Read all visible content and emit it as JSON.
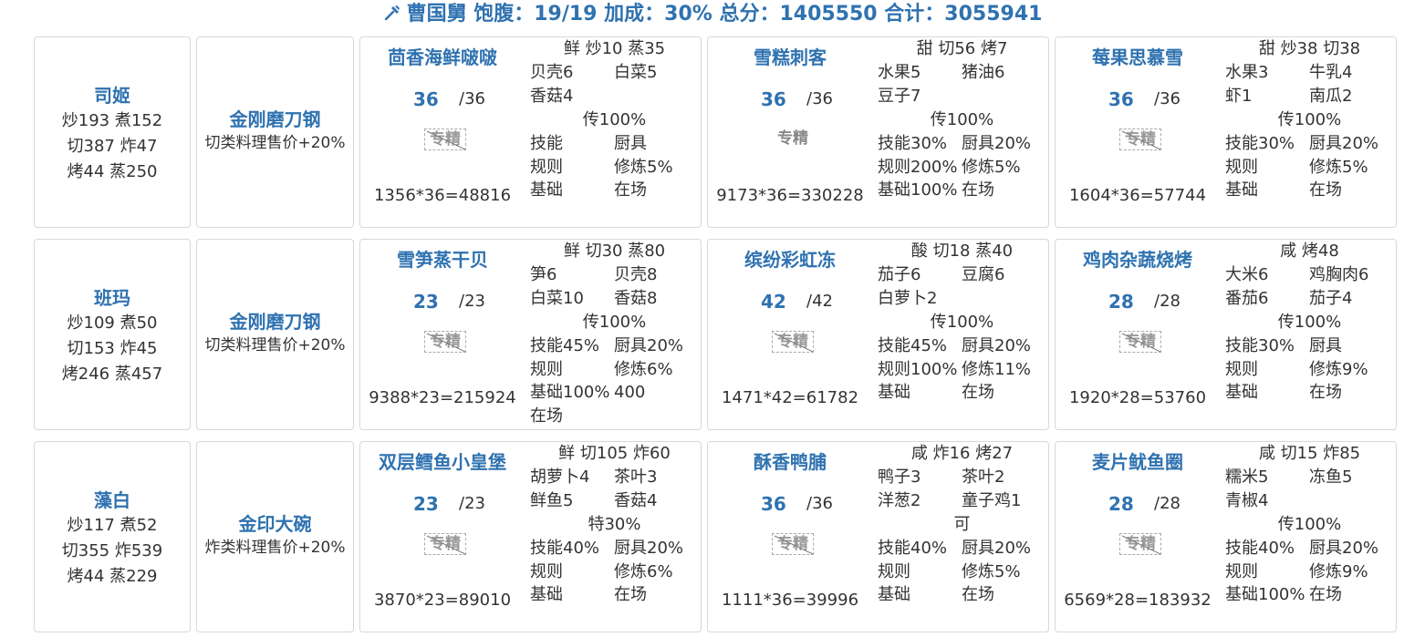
{
  "header": {
    "pin_icon": "pin-icon",
    "text": "曹国舅 饱腹：19/19 加成：30% 总分：1405550 合计：3055941"
  },
  "rows": [
    {
      "chef": {
        "name": "司姬",
        "stats": [
          "炒193 煮152",
          "切387 炸47",
          "烤44 蒸250"
        ]
      },
      "equip": {
        "name": "金刚磨刀钢",
        "desc": "切类料理售价+20%"
      },
      "recipes": [
        {
          "name": "茴香海鲜啵啵",
          "qty": "36",
          "max": "/36",
          "badge": "专精",
          "badge_style": "dashed",
          "formula": "1356*36=48816",
          "lines": [
            [
              "鲜 炒10 蒸35",
              null,
              "center"
            ],
            [
              "贝壳6",
              "白菜5"
            ],
            [
              "香菇4",
              ""
            ],
            [
              "传100%",
              null,
              "center"
            ],
            [
              "技能",
              "厨具"
            ],
            [
              "规则",
              "修炼5%"
            ],
            [
              "基础",
              "在场"
            ]
          ]
        },
        {
          "name": "雪糕刺客",
          "qty": "36",
          "max": "/36",
          "badge": "专精",
          "badge_style": "plain",
          "formula": "9173*36=330228",
          "lines": [
            [
              "甜 切56 烤7",
              null,
              "center"
            ],
            [
              "水果5",
              "猪油6"
            ],
            [
              "豆子7",
              ""
            ],
            [
              "传100%",
              null,
              "center"
            ],
            [
              "技能30%",
              "厨具20%"
            ],
            [
              "规则200%",
              "修炼5%"
            ],
            [
              "基础100%",
              "在场"
            ]
          ]
        },
        {
          "name": "莓果思慕雪",
          "qty": "36",
          "max": "/36",
          "badge": "专精",
          "badge_style": "dashed",
          "formula": "1604*36=57744",
          "lines": [
            [
              "甜 炒38 切38",
              null,
              "center"
            ],
            [
              "水果3",
              "牛乳4"
            ],
            [
              "虾1",
              "南瓜2"
            ],
            [
              "传100%",
              null,
              "center"
            ],
            [
              "技能30%",
              "厨具20%"
            ],
            [
              "规则",
              "修炼5%"
            ],
            [
              "基础",
              "在场"
            ]
          ]
        }
      ]
    },
    {
      "chef": {
        "name": "班玛",
        "stats": [
          "炒109 煮50",
          "切153 炸45",
          "烤246 蒸457"
        ]
      },
      "equip": {
        "name": "金刚磨刀钢",
        "desc": "切类料理售价+20%"
      },
      "recipes": [
        {
          "name": "雪笋蒸干贝",
          "qty": "23",
          "max": "/23",
          "badge": "专精",
          "badge_style": "dashed",
          "formula": "9388*23=215924",
          "lines": [
            [
              "鲜 切30 蒸80",
              null,
              "center"
            ],
            [
              "笋6",
              "贝壳8"
            ],
            [
              "白菜10",
              "香菇8"
            ],
            [
              "传100%",
              null,
              "center"
            ],
            [
              "技能45%",
              "厨具20%"
            ],
            [
              "规则",
              "修炼6%"
            ],
            [
              "基础100%",
              "400"
            ],
            [
              "在场",
              ""
            ]
          ]
        },
        {
          "name": "缤纷彩虹冻",
          "qty": "42",
          "max": "/42",
          "badge": "专精",
          "badge_style": "dashed",
          "formula": "1471*42=61782",
          "lines": [
            [
              "酸 切18 蒸40",
              null,
              "center"
            ],
            [
              "茄子6",
              "豆腐6"
            ],
            [
              "白萝卜2",
              ""
            ],
            [
              "传100%",
              null,
              "center"
            ],
            [
              "技能45%",
              "厨具20%"
            ],
            [
              "规则100%",
              "修炼11%"
            ],
            [
              "基础",
              "在场"
            ]
          ]
        },
        {
          "name": "鸡肉杂蔬烧烤",
          "qty": "28",
          "max": "/28",
          "badge": "专精",
          "badge_style": "dashed",
          "formula": "1920*28=53760",
          "lines": [
            [
              "咸 烤48",
              null,
              "center"
            ],
            [
              "大米6",
              "鸡胸肉6"
            ],
            [
              "番茄6",
              "茄子4"
            ],
            [
              "传100%",
              null,
              "center"
            ],
            [
              "技能30%",
              "厨具"
            ],
            [
              "规则",
              "修炼9%"
            ],
            [
              "基础",
              "在场"
            ]
          ]
        }
      ]
    },
    {
      "chef": {
        "name": "藻白",
        "stats": [
          "炒117 煮52",
          "切355 炸539",
          "烤44 蒸229"
        ]
      },
      "equip": {
        "name": "金印大碗",
        "desc": "炸类料理售价+20%"
      },
      "recipes": [
        {
          "name": "双层鳕鱼小皇堡",
          "qty": "23",
          "max": "/23",
          "badge": "专精",
          "badge_style": "dashed",
          "formula": "3870*23=89010",
          "lines": [
            [
              "鲜 切105 炸60",
              null,
              "center"
            ],
            [
              "胡萝卜4",
              "茶叶3"
            ],
            [
              "鲜鱼5",
              "香菇4"
            ],
            [
              "特30%",
              null,
              "center"
            ],
            [
              "技能40%",
              "厨具20%"
            ],
            [
              "规则",
              "修炼6%"
            ],
            [
              "基础",
              "在场"
            ]
          ]
        },
        {
          "name": "酥香鸭脯",
          "qty": "36",
          "max": "/36",
          "badge": "专精",
          "badge_style": "dashed",
          "formula": "1111*36=39996",
          "lines": [
            [
              "咸 炸16 烤27",
              null,
              "center"
            ],
            [
              "鸭子3",
              "茶叶2"
            ],
            [
              "洋葱2",
              "童子鸡1"
            ],
            [
              "可",
              null,
              "center"
            ],
            [
              "技能40%",
              "厨具20%"
            ],
            [
              "规则",
              "修炼5%"
            ],
            [
              "基础",
              "在场"
            ]
          ]
        },
        {
          "name": "麦片鱿鱼圈",
          "qty": "28",
          "max": "/28",
          "badge": "专精",
          "badge_style": "dashed",
          "formula": "6569*28=183932",
          "lines": [
            [
              "咸 切15 炸85",
              null,
              "center"
            ],
            [
              "糯米5",
              "冻鱼5"
            ],
            [
              "青椒4",
              ""
            ],
            [
              "传100%",
              null,
              "center"
            ],
            [
              "技能40%",
              "厨具20%"
            ],
            [
              "规则",
              "修炼9%"
            ],
            [
              "基础100%",
              "在场"
            ]
          ]
        }
      ]
    }
  ]
}
